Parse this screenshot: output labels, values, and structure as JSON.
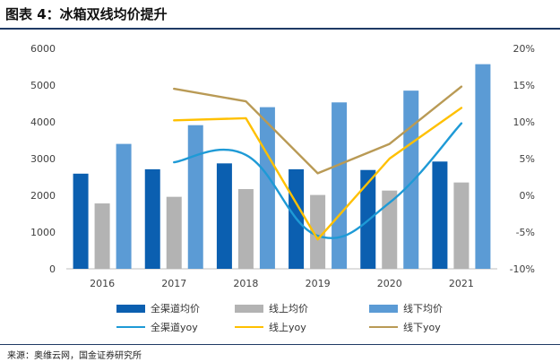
{
  "header": {
    "title": "图表 4：冰箱双线均价提升"
  },
  "footer": {
    "source": "来源：奥维云网，国金证券研究所"
  },
  "chart_data": {
    "type": "bar",
    "categories": [
      "2016",
      "2017",
      "2018",
      "2019",
      "2020",
      "2021"
    ],
    "series": [
      {
        "name": "全渠道均价",
        "type": "bar",
        "axis": "left",
        "color": "#0b5fb0",
        "values": [
          2590,
          2710,
          2870,
          2710,
          2690,
          2920
        ]
      },
      {
        "name": "线上均价",
        "type": "bar",
        "axis": "left",
        "color": "#b3b3b3",
        "values": [
          1780,
          1960,
          2170,
          2010,
          2130,
          2350
        ]
      },
      {
        "name": "线下均价",
        "type": "bar",
        "axis": "left",
        "color": "#5b9bd5",
        "values": [
          3400,
          3910,
          4400,
          4530,
          4850,
          5570
        ]
      },
      {
        "name": "全渠道yoy",
        "type": "line",
        "axis": "right",
        "color": "#1e9ad6",
        "values": [
          null,
          4.5,
          5.5,
          -5.5,
          -1.0,
          9.8
        ]
      },
      {
        "name": "线上yoy",
        "type": "line",
        "axis": "right",
        "color": "#ffc000",
        "values": [
          null,
          10.2,
          10.5,
          -6.0,
          5.0,
          11.9
        ]
      },
      {
        "name": "线下yoy",
        "type": "line",
        "axis": "right",
        "color": "#b99a55",
        "values": [
          null,
          14.5,
          12.8,
          3.0,
          7.0,
          14.8
        ]
      }
    ],
    "y_left": {
      "min": 0,
      "max": 6000,
      "ticks": [
        "0",
        "1000",
        "2000",
        "3000",
        "4000",
        "5000",
        "6000"
      ]
    },
    "y_right": {
      "min": -10,
      "max": 20,
      "ticks": [
        "-10%",
        "-5%",
        "0%",
        "5%",
        "10%",
        "15%",
        "20%"
      ]
    },
    "grid": false,
    "legend_position": "bottom"
  }
}
